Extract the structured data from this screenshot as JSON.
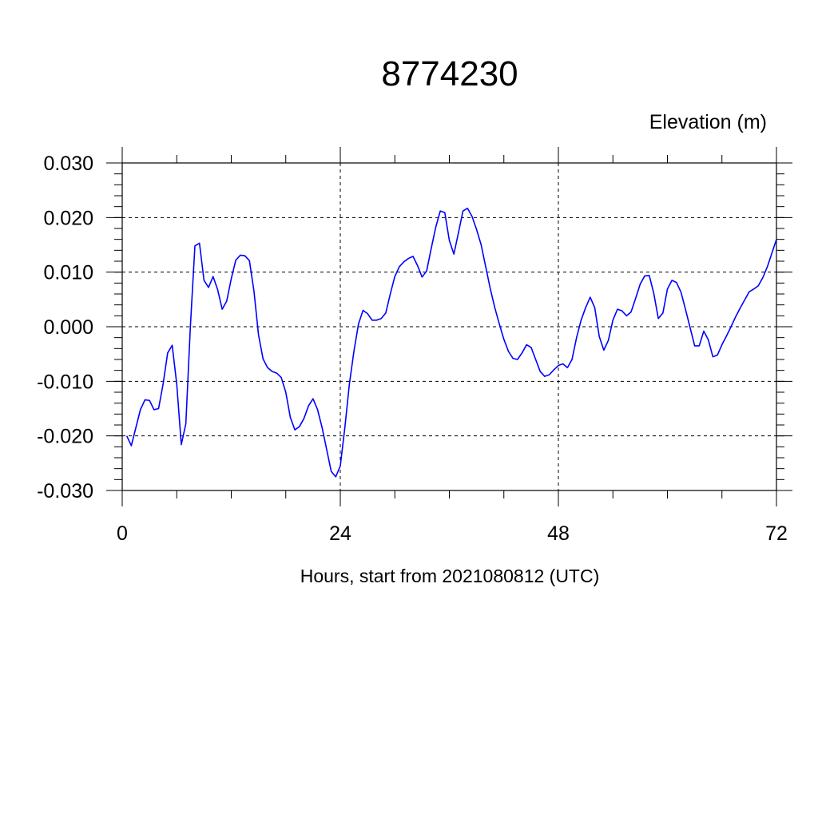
{
  "chart_data": {
    "type": "line",
    "title": "8774230",
    "ylabel": "Elevation (m)",
    "xlabel": "Hours, start from 2021080812 (UTC)",
    "xlim": [
      0,
      72
    ],
    "ylim": [
      -0.03,
      0.03
    ],
    "xticks": [
      0,
      24,
      48,
      72
    ],
    "xtick_labels": [
      "0",
      "24",
      "48",
      "72"
    ],
    "yticks": [
      -0.03,
      -0.02,
      -0.01,
      0.0,
      0.01,
      0.02,
      0.03
    ],
    "ytick_labels": [
      "-0.030",
      "-0.020",
      "-0.010",
      "0.000",
      "0.010",
      "0.020",
      "0.030"
    ],
    "grid": true,
    "line_color": "#0000ff",
    "series": [
      {
        "x": [
          0.5,
          1,
          2,
          2.5,
          3,
          3.5,
          4,
          4.5,
          5,
          5.5,
          6,
          6.5,
          7,
          7.5,
          8,
          8.5,
          9,
          9.5,
          10,
          10.5,
          11,
          11.5,
          12,
          12.5,
          13,
          13.5,
          14,
          14.5,
          15,
          15.5,
          16,
          16.5,
          17,
          17.5,
          18,
          18.5,
          19,
          19.5,
          20,
          20.5,
          21,
          21.5,
          22,
          22.5,
          23,
          23.5,
          24,
          24.5,
          25,
          25.5,
          26,
          26.5,
          27,
          27.5,
          28,
          28.5,
          29,
          29.5,
          30,
          30.5,
          31,
          31.5,
          32,
          32.5,
          33,
          33.5,
          34,
          34.5,
          35,
          35.5,
          36,
          36.5,
          37,
          37.5,
          38,
          38.5,
          39,
          39.5,
          40,
          40.5,
          41,
          41.5,
          42,
          42.5,
          43,
          43.5,
          44,
          44.5,
          45,
          45.5,
          46,
          46.5,
          47,
          47.5,
          48,
          48.5,
          49,
          49.5,
          50,
          50.5,
          51,
          51.5,
          52,
          52.5,
          53,
          53.5,
          54,
          54.5,
          55,
          55.5,
          56,
          56.5,
          57,
          57.5,
          58,
          58.5,
          59,
          59.5,
          60,
          60.5,
          61,
          61.5,
          62,
          62.5,
          63,
          63.5,
          64,
          64.5,
          65,
          65.5,
          66,
          66.5,
          67,
          67.5,
          68,
          68.5,
          69,
          69.5,
          70,
          70.5,
          71,
          71.5,
          72
        ],
        "y": [
          -0.02,
          -0.0218,
          -0.0152,
          -0.0134,
          -0.0135,
          -0.0152,
          -0.015,
          -0.0105,
          -0.0048,
          -0.0034,
          -0.0105,
          -0.0216,
          -0.0178,
          0.0,
          0.0148,
          0.0153,
          0.0085,
          0.0072,
          0.0092,
          0.0068,
          0.0032,
          0.0047,
          0.0088,
          0.0122,
          0.0131,
          0.013,
          0.0121,
          0.0065,
          -0.0015,
          -0.0059,
          -0.0075,
          -0.0082,
          -0.0085,
          -0.0093,
          -0.012,
          -0.0166,
          -0.0189,
          -0.0183,
          -0.0168,
          -0.0145,
          -0.0132,
          -0.0152,
          -0.0185,
          -0.0225,
          -0.0265,
          -0.0275,
          -0.0255,
          -0.0185,
          -0.0105,
          -0.0045,
          0.0005,
          0.003,
          0.0024,
          0.0012,
          0.0012,
          0.0015,
          0.0025,
          0.006,
          0.0092,
          0.011,
          0.0119,
          0.0125,
          0.0129,
          0.0112,
          0.0091,
          0.0102,
          0.0143,
          0.0182,
          0.0212,
          0.0209,
          0.0158,
          0.0133,
          0.0172,
          0.0212,
          0.0217,
          0.0202,
          0.0178,
          0.015,
          0.011,
          0.007,
          0.0035,
          0.0005,
          -0.0023,
          -0.0045,
          -0.0058,
          -0.006,
          -0.0048,
          -0.0033,
          -0.0038,
          -0.006,
          -0.0082,
          -0.0091,
          -0.0088,
          -0.0079,
          -0.0071,
          -0.0068,
          -0.0075,
          -0.006,
          -0.002,
          0.0012,
          0.0035,
          0.0054,
          0.0035,
          -0.0018,
          -0.0043,
          -0.0025,
          0.0012,
          0.0032,
          0.0029,
          0.002,
          0.0027,
          0.0052,
          0.0078,
          0.0093,
          0.0094,
          0.0061,
          0.0015,
          0.0025,
          0.0069,
          0.0085,
          0.0081,
          0.0063,
          0.0031,
          -0.0002,
          -0.0035,
          -0.0035,
          -0.0008,
          -0.0024,
          -0.0055,
          -0.0052,
          -0.0033,
          -0.0017,
          0.0,
          0.0018,
          0.0034,
          0.0049,
          0.0064,
          0.0069,
          0.0075,
          0.009,
          0.011,
          0.0135,
          0.016
        ]
      }
    ]
  }
}
